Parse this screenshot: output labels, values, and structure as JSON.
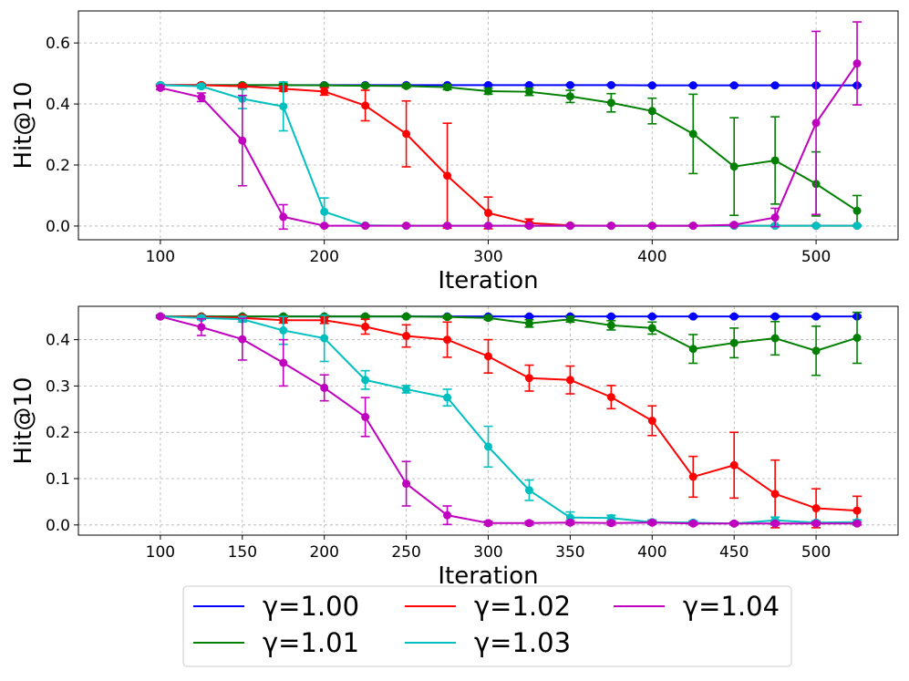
{
  "chart_data": [
    {
      "type": "line",
      "title": "",
      "xlabel": "Iteration",
      "ylabel": "Hit@10",
      "xlim": [
        50,
        550
      ],
      "ylim": [
        -0.045,
        0.705
      ],
      "xticks": [
        100,
        200,
        300,
        400,
        500
      ],
      "xtick_labels": [
        "100",
        "200",
        "300",
        "400",
        "500"
      ],
      "yticks": [
        0.0,
        0.2,
        0.4,
        0.6
      ],
      "ytick_labels": [
        "0.0",
        "0.2",
        "0.4",
        "0.6"
      ],
      "grid": true,
      "x": [
        100,
        125,
        150,
        175,
        200,
        225,
        250,
        275,
        300,
        325,
        350,
        375,
        400,
        425,
        450,
        475,
        500,
        525
      ],
      "series": [
        {
          "name": "γ=1.00",
          "color": "#0000ff",
          "values": [
            0.462,
            0.462,
            0.462,
            0.462,
            0.462,
            0.462,
            0.462,
            0.462,
            0.462,
            0.462,
            0.462,
            0.462,
            0.461,
            0.461,
            0.461,
            0.461,
            0.461,
            0.461
          ],
          "errors": [
            0.002,
            0.002,
            0.002,
            0.002,
            0.002,
            0.002,
            0.002,
            0.002,
            0.002,
            0.002,
            0.002,
            0.002,
            0.002,
            0.002,
            0.002,
            0.002,
            0.002,
            0.002
          ]
        },
        {
          "name": "γ=1.01",
          "color": "#008000",
          "values": [
            0.462,
            0.462,
            0.462,
            0.462,
            0.461,
            0.46,
            0.459,
            0.455,
            0.442,
            0.44,
            0.425,
            0.404,
            0.377,
            0.302,
            0.195,
            0.215,
            0.138,
            0.05
          ],
          "errors": [
            0.003,
            0.003,
            0.003,
            0.004,
            0.004,
            0.004,
            0.005,
            0.008,
            0.01,
            0.012,
            0.02,
            0.03,
            0.042,
            0.13,
            0.16,
            0.143,
            0.105,
            0.05
          ]
        },
        {
          "name": "γ=1.02",
          "color": "#ff0000",
          "values": [
            0.462,
            0.462,
            0.458,
            0.45,
            0.441,
            0.395,
            0.302,
            0.165,
            0.043,
            0.01,
            0.002,
            0.001,
            0.001,
            0.001,
            0.001,
            0.001,
            0.001,
            0.001
          ],
          "errors": [
            0.003,
            0.004,
            0.005,
            0.008,
            0.012,
            0.05,
            0.108,
            0.172,
            0.052,
            0.013,
            0.003,
            0.002,
            0.002,
            0.002,
            0.002,
            0.002,
            0.002,
            0.002
          ]
        },
        {
          "name": "γ=1.03",
          "color": "#00bfbf",
          "values": [
            0.462,
            0.458,
            0.417,
            0.392,
            0.047,
            0.002,
            0.001,
            0.001,
            0.001,
            0.001,
            0.001,
            0.001,
            0.001,
            0.001,
            0.001,
            0.001,
            0.001,
            0.001
          ],
          "errors": [
            0.003,
            0.006,
            0.032,
            0.08,
            0.045,
            0.003,
            0.002,
            0.002,
            0.002,
            0.002,
            0.002,
            0.002,
            0.002,
            0.002,
            0.002,
            0.002,
            0.002,
            0.002
          ]
        },
        {
          "name": "γ=1.04",
          "color": "#bf00bf",
          "values": [
            0.453,
            0.422,
            0.28,
            0.03,
            0.001,
            0.001,
            0.001,
            0.001,
            0.001,
            0.001,
            0.001,
            0.001,
            0.001,
            0.001,
            0.004,
            0.028,
            0.338,
            0.533
          ],
          "errors": [
            0.006,
            0.014,
            0.148,
            0.04,
            0.002,
            0.002,
            0.002,
            0.002,
            0.002,
            0.002,
            0.002,
            0.002,
            0.002,
            0.002,
            0.004,
            0.03,
            0.3,
            0.136
          ]
        }
      ]
    },
    {
      "type": "line",
      "title": "",
      "xlabel": "Iteration",
      "ylabel": "Hit@10",
      "xlim": [
        50,
        550
      ],
      "ylim": [
        -0.022,
        0.472
      ],
      "xticks": [
        100,
        150,
        200,
        250,
        300,
        350,
        400,
        450,
        500
      ],
      "xtick_labels": [
        "100",
        "150",
        "200",
        "250",
        "300",
        "350",
        "400",
        "450",
        "500"
      ],
      "yticks": [
        0.0,
        0.1,
        0.2,
        0.3,
        0.4
      ],
      "ytick_labels": [
        "0.0",
        "0.1",
        "0.2",
        "0.3",
        "0.4"
      ],
      "grid": true,
      "x": [
        100,
        125,
        150,
        175,
        200,
        225,
        250,
        275,
        300,
        325,
        350,
        375,
        400,
        425,
        450,
        475,
        500,
        525
      ],
      "series": [
        {
          "name": "γ=1.00",
          "color": "#0000ff",
          "values": [
            0.45,
            0.45,
            0.45,
            0.45,
            0.45,
            0.45,
            0.45,
            0.45,
            0.45,
            0.45,
            0.45,
            0.45,
            0.45,
            0.45,
            0.45,
            0.45,
            0.45,
            0.45
          ],
          "errors": [
            0.002,
            0.002,
            0.002,
            0.002,
            0.002,
            0.002,
            0.002,
            0.002,
            0.002,
            0.002,
            0.002,
            0.002,
            0.002,
            0.002,
            0.002,
            0.002,
            0.002,
            0.002
          ]
        },
        {
          "name": "γ=1.01",
          "color": "#008000",
          "values": [
            0.45,
            0.45,
            0.45,
            0.45,
            0.45,
            0.45,
            0.45,
            0.449,
            0.447,
            0.435,
            0.444,
            0.431,
            0.425,
            0.38,
            0.393,
            0.403,
            0.376,
            0.404
          ],
          "errors": [
            0.002,
            0.002,
            0.002,
            0.002,
            0.002,
            0.002,
            0.002,
            0.003,
            0.004,
            0.008,
            0.006,
            0.01,
            0.013,
            0.031,
            0.032,
            0.036,
            0.053,
            0.055
          ]
        },
        {
          "name": "γ=1.02",
          "color": "#ff0000",
          "values": [
            0.45,
            0.449,
            0.447,
            0.442,
            0.442,
            0.428,
            0.408,
            0.4,
            0.364,
            0.317,
            0.313,
            0.276,
            0.225,
            0.104,
            0.129,
            0.067,
            0.036,
            0.031
          ],
          "errors": [
            0.003,
            0.003,
            0.004,
            0.006,
            0.007,
            0.016,
            0.024,
            0.038,
            0.036,
            0.028,
            0.03,
            0.025,
            0.032,
            0.044,
            0.071,
            0.073,
            0.042,
            0.031
          ]
        },
        {
          "name": "γ=1.03",
          "color": "#00bfbf",
          "values": [
            0.45,
            0.447,
            0.444,
            0.42,
            0.403,
            0.313,
            0.293,
            0.275,
            0.169,
            0.075,
            0.016,
            0.015,
            0.006,
            0.005,
            0.003,
            0.01,
            0.005,
            0.006
          ],
          "errors": [
            0.003,
            0.004,
            0.006,
            0.03,
            0.05,
            0.02,
            0.008,
            0.018,
            0.044,
            0.022,
            0.012,
            0.006,
            0.005,
            0.004,
            0.003,
            0.007,
            0.004,
            0.005
          ]
        },
        {
          "name": "γ=1.04",
          "color": "#bf00bf",
          "values": [
            0.45,
            0.427,
            0.401,
            0.35,
            0.296,
            0.233,
            0.089,
            0.021,
            0.004,
            0.004,
            0.005,
            0.004,
            0.005,
            0.003,
            0.003,
            0.003,
            0.003,
            0.003
          ],
          "errors": [
            0.003,
            0.018,
            0.045,
            0.05,
            0.028,
            0.042,
            0.048,
            0.02,
            0.004,
            0.004,
            0.004,
            0.004,
            0.003,
            0.003,
            0.003,
            0.003,
            0.003,
            0.003
          ]
        }
      ]
    }
  ],
  "legend": {
    "location": "bottom-center",
    "entries": [
      {
        "label": "γ=1.00",
        "color": "#0000ff"
      },
      {
        "label": "γ=1.01",
        "color": "#008000"
      },
      {
        "label": "γ=1.02",
        "color": "#ff0000"
      },
      {
        "label": "γ=1.03",
        "color": "#00bfbf"
      },
      {
        "label": "γ=1.04",
        "color": "#bf00bf"
      }
    ]
  }
}
